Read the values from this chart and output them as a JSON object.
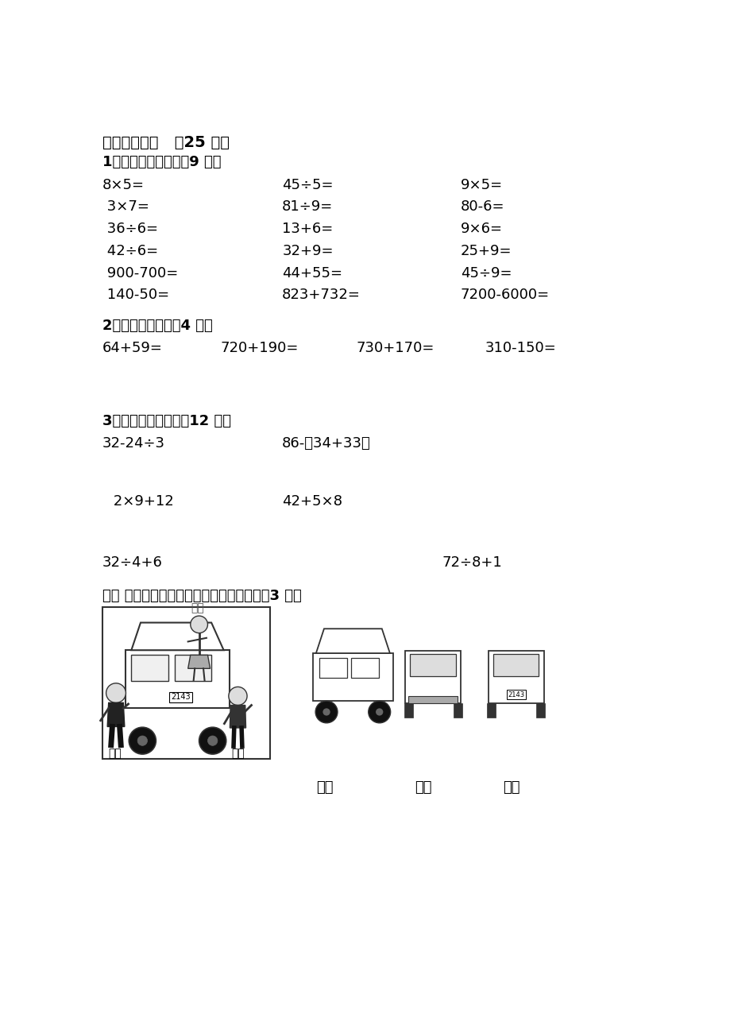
{
  "bg_color": "#ffffff",
  "text_color": "#000000",
  "section2_title": "二、我会算。   （25 分）",
  "section2_sub1": "1、直接写出得数。（9 分）",
  "row1": [
    "8×5=",
    "45÷5=",
    "9×5="
  ],
  "row2": [
    " 3×7=",
    "81÷9=",
    "80-6="
  ],
  "row3": [
    " 36÷6=",
    "13+6=",
    "9×6="
  ],
  "row4": [
    " 42÷6=",
    "32+9=",
    "25+9="
  ],
  "row5": [
    " 900-700=",
    "44+55=",
    "45÷9="
  ],
  "row6": [
    " 140-50=",
    "823+732=",
    "7200-6000="
  ],
  "section2_sub2": "2、列竖式计算。（4 分）",
  "row_vertical": [
    "64+59=",
    "720+190=",
    "730+170=",
    "310-150="
  ],
  "section2_sub3": "3、用递等式计算。（12 分）",
  "recursive_row1": [
    "32-24÷3",
    "86-（34+33）"
  ],
  "recursive_row2": [
    " 2×9+12",
    "42+5×8"
  ],
  "recursive_row3": [
    "32÷4+6",
    "72÷8+1"
  ],
  "section4_title": "四、 请你连一连，下面分别是谁看到的？（3 分）",
  "label_xiaohong": "小红",
  "label_xiaodong": "小东",
  "label_xiaoming": "小明"
}
